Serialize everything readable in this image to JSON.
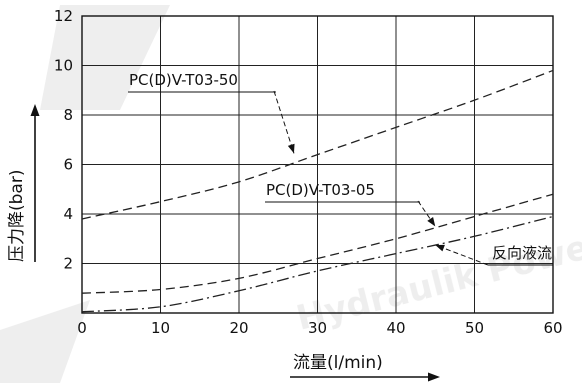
{
  "chart_data": {
    "type": "line",
    "xlabel": "流量(l/min)",
    "ylabel": "压力降(bar)",
    "xlim": [
      0,
      60
    ],
    "ylim": [
      0,
      12
    ],
    "x_ticks": [
      "0",
      "10",
      "20",
      "30",
      "40",
      "50",
      "60"
    ],
    "y_ticks": [
      "2",
      "4",
      "6",
      "8",
      "10",
      "12"
    ],
    "grid": true,
    "series": [
      {
        "name": "PC(D)V-T03-50",
        "style": "dashed",
        "x": [
          0,
          10,
          20,
          30,
          40,
          50,
          60
        ],
        "y": [
          3.8,
          4.5,
          5.3,
          6.4,
          7.5,
          8.6,
          9.8
        ]
      },
      {
        "name": "PC(D)V-T03-05",
        "style": "dashed",
        "x": [
          0,
          10,
          20,
          30,
          40,
          50,
          60
        ],
        "y": [
          0.8,
          0.95,
          1.4,
          2.2,
          3.0,
          3.9,
          4.8
        ]
      },
      {
        "name": "反向液流",
        "style": "dash-dot",
        "x": [
          0,
          10,
          20,
          30,
          40,
          50,
          60
        ],
        "y": [
          0.05,
          0.25,
          0.9,
          1.7,
          2.4,
          3.1,
          3.9
        ]
      }
    ],
    "annotations": [
      {
        "text": "PC(D)V-T03-50",
        "series": 0
      },
      {
        "text": "PC(D)V-T03-05",
        "series": 1
      },
      {
        "text": "反向液流",
        "series": 2
      }
    ],
    "watermark": "Hydraulik Power"
  }
}
